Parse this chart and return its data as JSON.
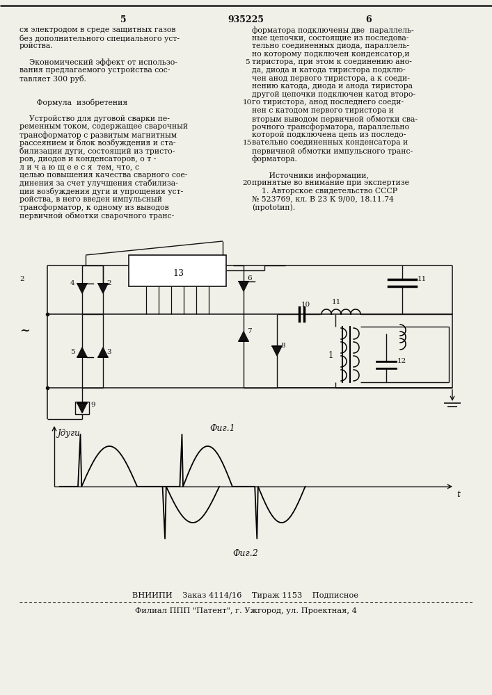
{
  "bg_color": "#f0efe8",
  "page_number_left": "5",
  "page_number_center": "935225",
  "page_number_right": "6",
  "left_col_lines": [
    "ся электродом в среде защитных газов",
    "без дополнительного специального уст-",
    "ройства.",
    "",
    "    Экономический эффект от использо-",
    "вания предлагаемого устройства сос-",
    "тавляет 300 руб.",
    "",
    "",
    "       Формула  изобретения",
    "",
    "    Устройство для дуговой сварки пе-",
    "ременным током, содержащее сварочный",
    "трансформатор с развитым магнитным",
    "рассеянием и блок возбуждения и ста-",
    "билизации дуги, состоящий из тристо-",
    "ров, диодов и конденсаторов, о т -",
    "л и ч а ю щ е е с я  тем, что, с",
    "целью повышения качества сварного сое-",
    "динения за счет улучшения стабилиза-",
    "ции возбуждения дуги и упрощения уст-",
    "ройства, в него введен импульсный",
    "трансформатор, к одному из выводов",
    "первичной обмотки сварочного транс-"
  ],
  "right_col_lines": [
    "форматора подключены две  параллель-",
    "ные цепочки, состоящие из последова-",
    "тельно соединенных диода, параллель-",
    "но которому подключен конденсатор,и",
    "тиристора, при этом к соединению ано-",
    "да, диода и катода тиристора подклю-",
    "чен анод первого тиристора, а к соеди-",
    "нению катода, диода и анода тиристора",
    "другой цепочки подключен катод второ-",
    "го тиристора, анод последнего соеди-",
    "нен с катодом первого тиристора и",
    "вторым выводом первичной обмотки сва-",
    "рочного трансформатора, параллельно",
    "которой подключена цепь из последо-",
    "вательно соединенных конденсатора и",
    "первичной обмотки импульсного транс-",
    "форматора.",
    "",
    "       Источники информации,",
    "принятые во внимание при экспертизе",
    "    1. Авторское свидетельство СССР",
    "№ 523769, кл. В 23 К 9/00, 18.11.74",
    "(прototип)."
  ],
  "fig1_label": "Фиг.1",
  "fig2_label": "Фиг.2",
  "y_axis_label": "Jдуги",
  "x_axis_label": "t",
  "footer_line1": "ВНИИПИ    Заказ 4114/16    Тираж 1153    Подписное",
  "footer_line2": "Филиал ППП \"Патент\", г. Ужгород, ул. Проектная, 4"
}
